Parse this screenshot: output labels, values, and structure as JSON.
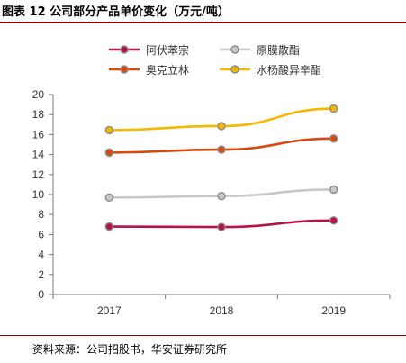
{
  "title": "图表 12 公司部分产品单价变化（万元/吨）",
  "source": "资料来源：公司招股书，华安证券研究所",
  "chart_data": {
    "type": "line",
    "x": [
      "2017",
      "2018",
      "2019"
    ],
    "ylim": [
      0,
      20
    ],
    "yticks": [
      "0",
      "2",
      "4",
      "6",
      "8",
      "10",
      "12",
      "14",
      "16",
      "18",
      "20"
    ],
    "grid": false,
    "legend_position": "top",
    "series": [
      {
        "name": "阿伏苯宗",
        "values": [
          6.8,
          6.75,
          7.4
        ],
        "color": "#b5124a"
      },
      {
        "name": "原膜散酯",
        "values": [
          9.7,
          9.85,
          10.5
        ],
        "color": "#c8c8c8"
      },
      {
        "name": "奥克立林",
        "values": [
          14.2,
          14.5,
          15.6
        ],
        "color": "#d9480f"
      },
      {
        "name": "水杨酸异辛酯",
        "values": [
          16.45,
          16.85,
          18.6
        ],
        "color": "#f5b800"
      }
    ]
  }
}
